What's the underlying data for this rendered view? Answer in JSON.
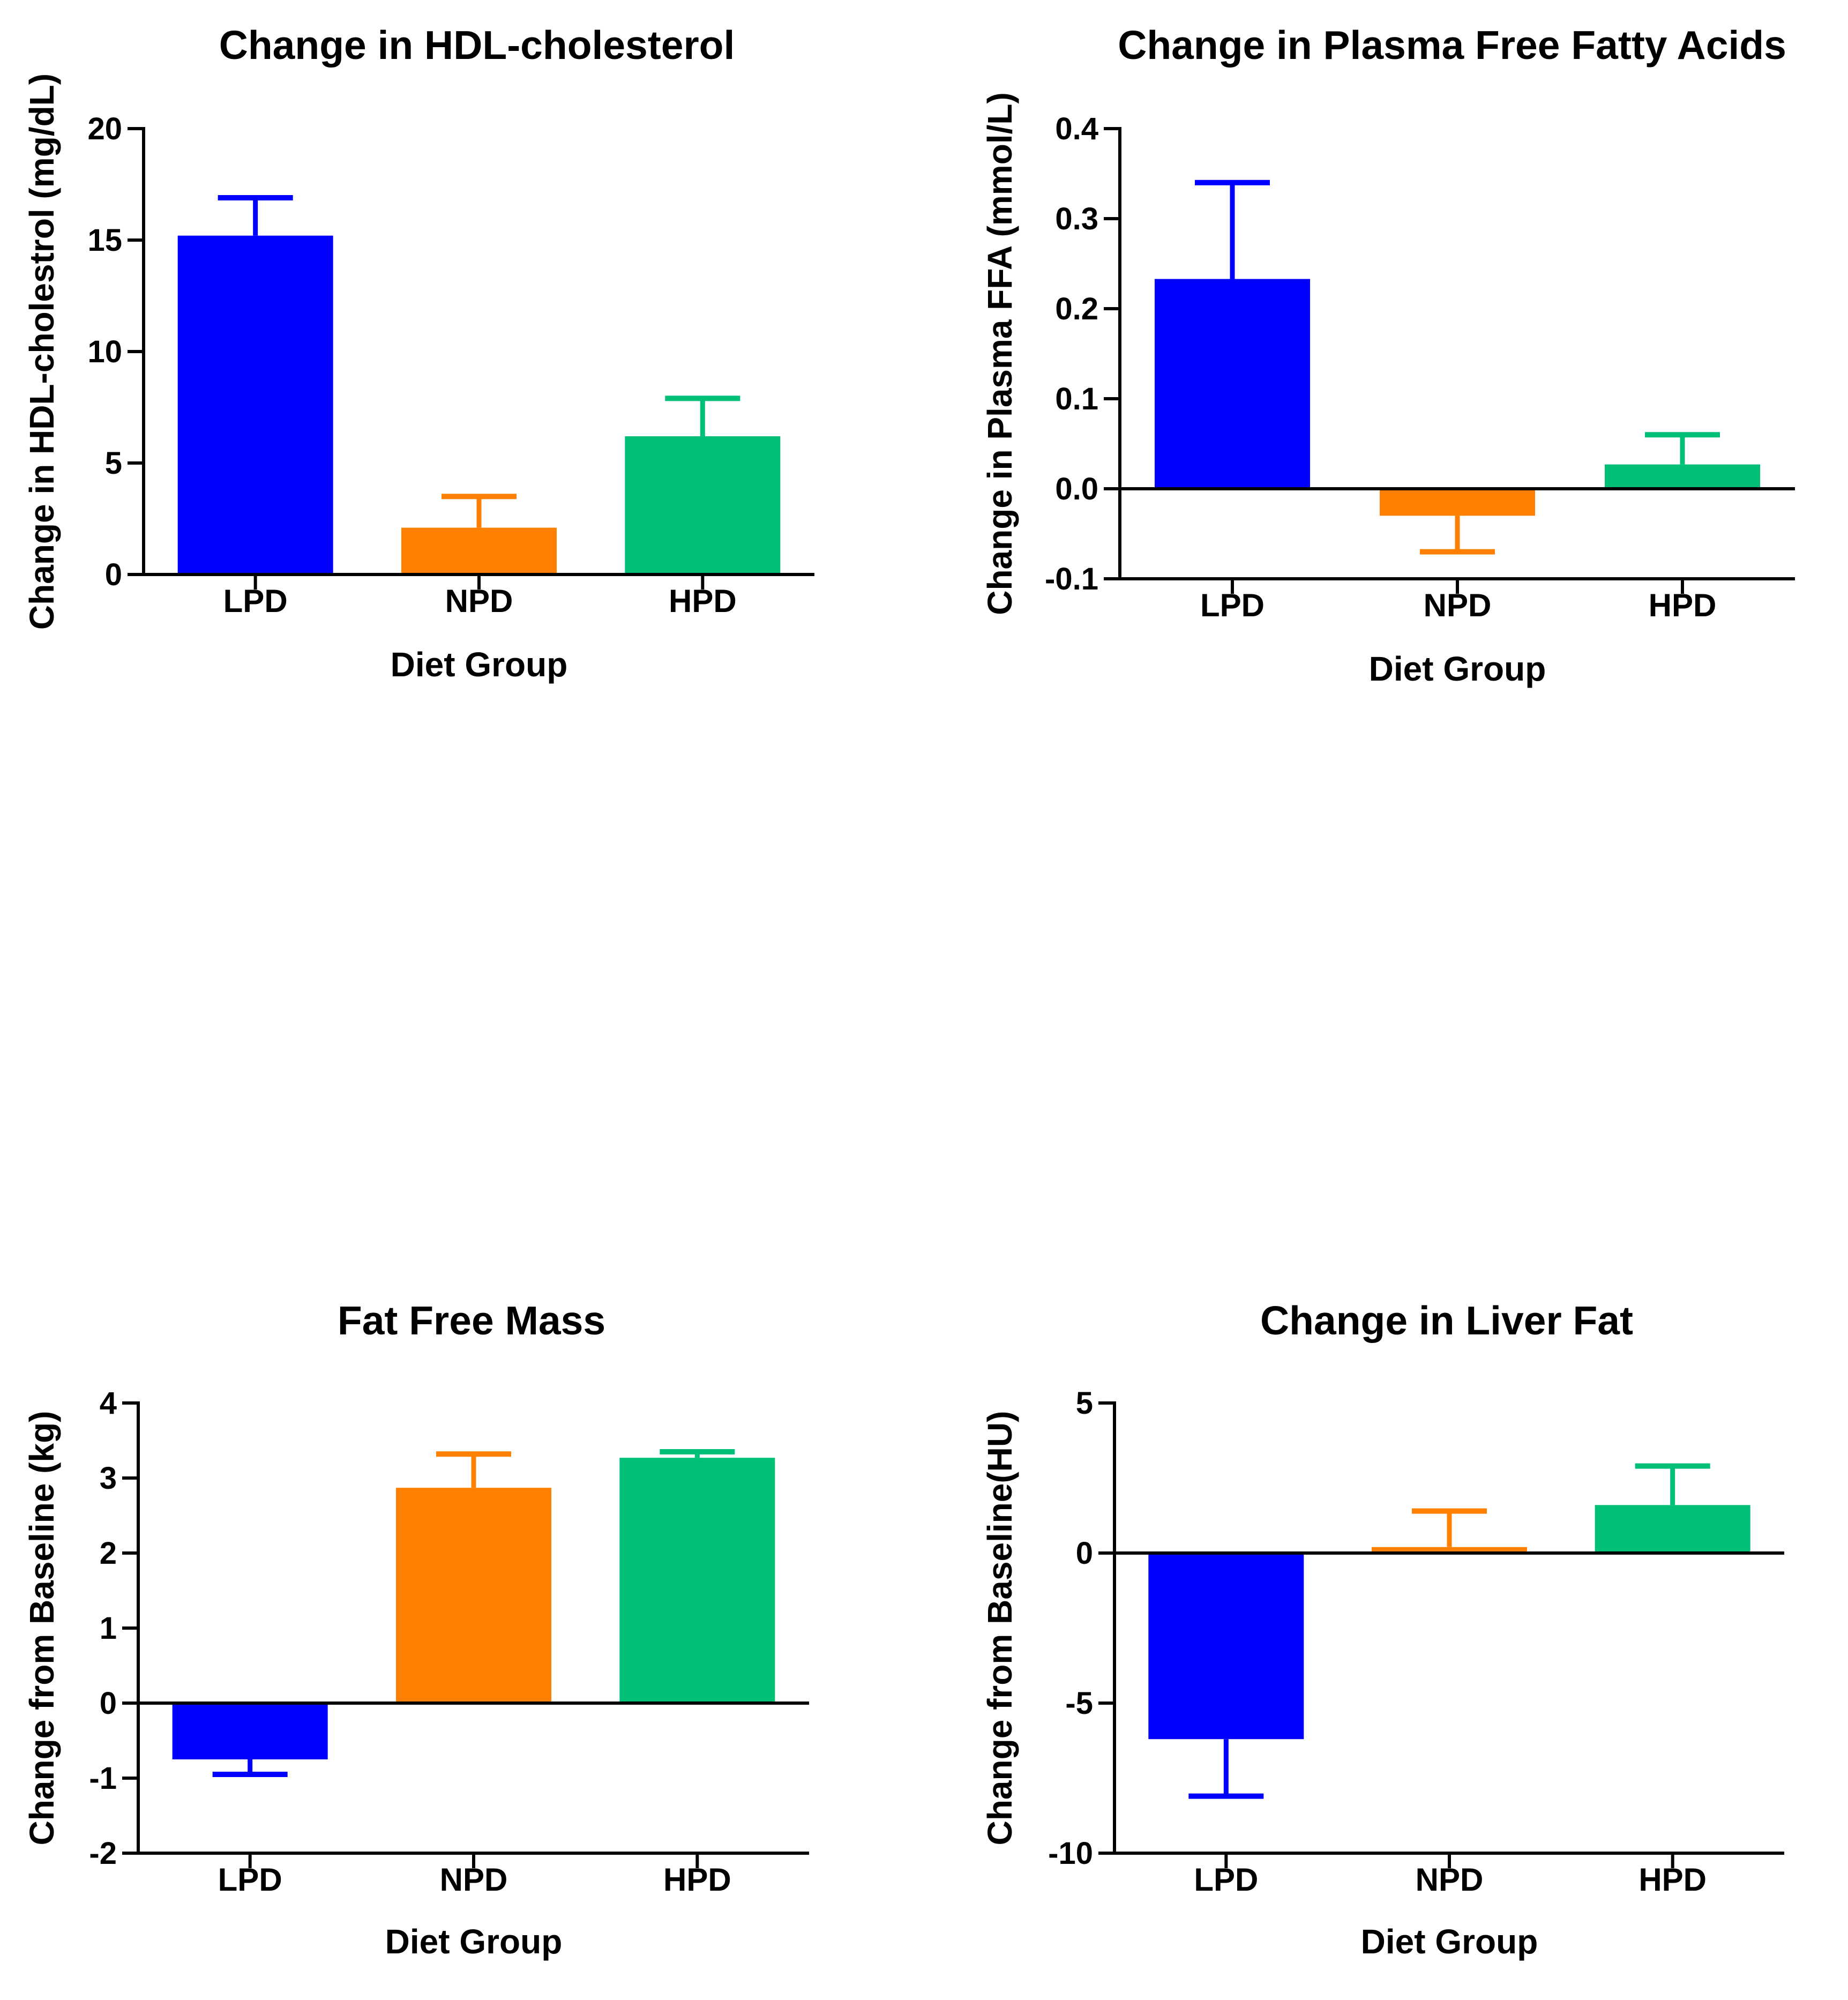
{
  "colors": {
    "LPD": "#0000ff",
    "NPD": "#ff8000",
    "HPD": "#00bf76"
  },
  "chart_data": [
    {
      "type": "bar",
      "title": "Change in HDL-cholesterol",
      "xlabel": "Diet Group",
      "ylabel": "Change in HDL-cholestrol (mg/dL)",
      "categories": [
        "LPD",
        "NPD",
        "HPD"
      ],
      "values": [
        15.2,
        2.1,
        6.2
      ],
      "errors": [
        1.7,
        1.4,
        1.7
      ],
      "ylim": [
        0,
        20
      ],
      "yticks": [
        0,
        5,
        10,
        15,
        20
      ],
      "ytick_labels": [
        "0",
        "5",
        "10",
        "15",
        "20"
      ]
    },
    {
      "type": "bar",
      "title": "Change in Plasma Free Fatty Acids",
      "xlabel": "Diet Group",
      "ylabel": "Change in Plasma FFA (mmol/L)",
      "categories": [
        "LPD",
        "NPD",
        "HPD"
      ],
      "values": [
        0.233,
        -0.03,
        0.027
      ],
      "errors": [
        0.107,
        0.04,
        0.033
      ],
      "ylim": [
        -0.1,
        0.4
      ],
      "yticks": [
        -0.1,
        0.0,
        0.1,
        0.2,
        0.3,
        0.4
      ],
      "ytick_labels": [
        "-0.1",
        "0.0",
        "0.1",
        "0.2",
        "0.3",
        "0.4"
      ]
    },
    {
      "type": "bar",
      "title": "Fat Free Mass",
      "xlabel": "Diet Group",
      "ylabel": "Change from Baseline (kg)",
      "categories": [
        "LPD",
        "NPD",
        "HPD"
      ],
      "values": [
        -0.75,
        2.87,
        3.27
      ],
      "errors": [
        0.2,
        0.45,
        0.08
      ],
      "ylim": [
        -2,
        4
      ],
      "yticks": [
        -2,
        -1,
        0,
        1,
        2,
        3,
        4
      ],
      "ytick_labels": [
        "-2",
        "-1",
        "0",
        "1",
        "2",
        "3",
        "4"
      ]
    },
    {
      "type": "bar",
      "title": "Change in Liver Fat",
      "xlabel": "Diet Group",
      "ylabel": "Change from Baseline(HU)",
      "categories": [
        "LPD",
        "NPD",
        "HPD"
      ],
      "values": [
        -6.2,
        0.2,
        1.6
      ],
      "errors": [
        1.9,
        1.2,
        1.3
      ],
      "ylim": [
        -10,
        5
      ],
      "yticks": [
        -10,
        -5,
        0,
        5
      ],
      "ytick_labels": [
        "-10",
        "-5",
        "0",
        "5"
      ]
    }
  ]
}
